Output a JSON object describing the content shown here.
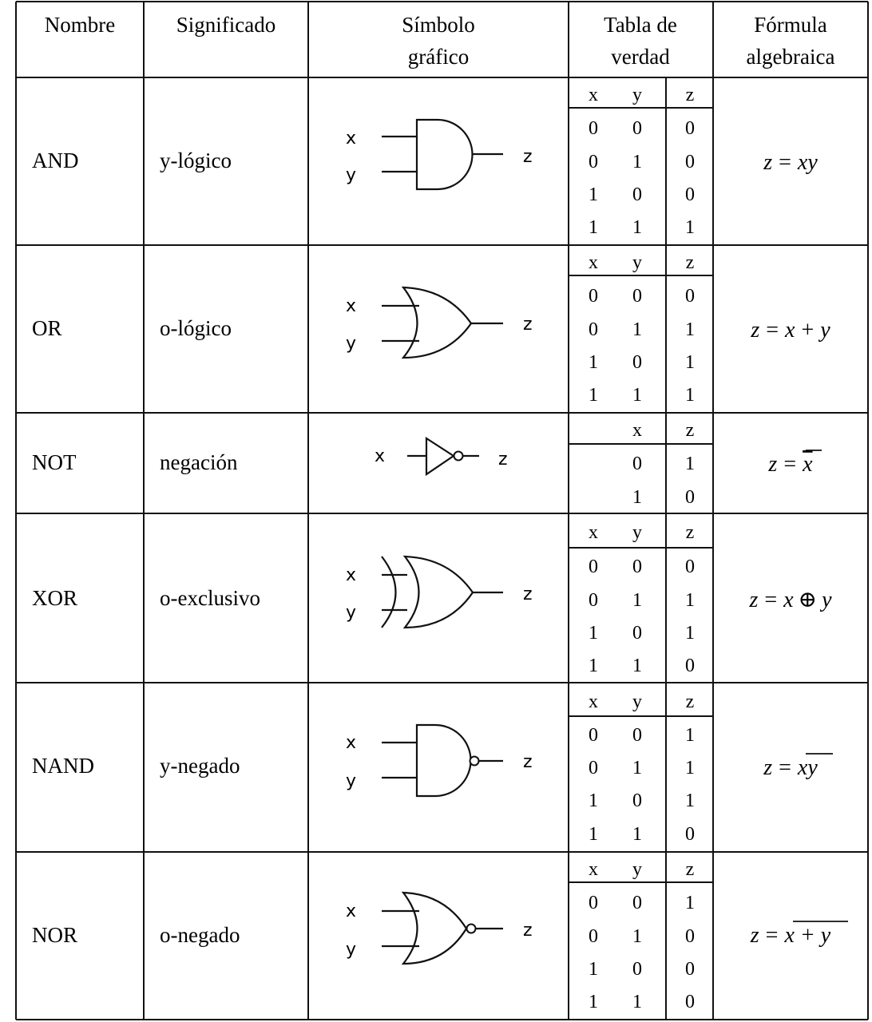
{
  "header": {
    "col_name": "Nombre",
    "col_meaning": "Significado",
    "col_symbol_1": "Símbolo",
    "col_symbol_2": "gráfico",
    "col_truth_1": "Tabla de",
    "col_truth_2": "verdad",
    "col_formula_1": "Fórmula",
    "col_formula_2": "algebraica"
  },
  "gates": [
    {
      "name": "AND",
      "meaning": "y-lógico",
      "symbol": "and-gate",
      "inputs": [
        "x",
        "y"
      ],
      "output": "z",
      "truth_header": [
        "x",
        "y",
        "z"
      ],
      "truth_rows": [
        [
          "0",
          "0",
          "0"
        ],
        [
          "0",
          "1",
          "0"
        ],
        [
          "1",
          "0",
          "0"
        ],
        [
          "1",
          "1",
          "1"
        ]
      ],
      "formula": {
        "lhs": "z",
        "eq": "=",
        "rhs": "xy"
      }
    },
    {
      "name": "OR",
      "meaning": "o-lógico",
      "symbol": "or-gate",
      "inputs": [
        "x",
        "y"
      ],
      "output": "z",
      "truth_header": [
        "x",
        "y",
        "z"
      ],
      "truth_rows": [
        [
          "0",
          "0",
          "0"
        ],
        [
          "0",
          "1",
          "1"
        ],
        [
          "1",
          "0",
          "1"
        ],
        [
          "1",
          "1",
          "1"
        ]
      ],
      "formula": {
        "lhs": "z",
        "eq": "=",
        "rhs_a": "x",
        "op": "+",
        "rhs_b": "y"
      }
    },
    {
      "name": "NOT",
      "meaning": "negación",
      "symbol": "not-gate",
      "inputs": [
        "x"
      ],
      "output": "z",
      "truth_header": [
        "x",
        "z"
      ],
      "truth_rows": [
        [
          "0",
          "1"
        ],
        [
          "1",
          "0"
        ]
      ],
      "formula": {
        "lhs": "z",
        "eq": "=",
        "rhs": "x"
      }
    },
    {
      "name": "XOR",
      "meaning": "o-exclusivo",
      "symbol": "xor-gate",
      "inputs": [
        "x",
        "y"
      ],
      "output": "z",
      "truth_header": [
        "x",
        "y",
        "z"
      ],
      "truth_rows": [
        [
          "0",
          "0",
          "0"
        ],
        [
          "0",
          "1",
          "1"
        ],
        [
          "1",
          "0",
          "1"
        ],
        [
          "1",
          "1",
          "0"
        ]
      ],
      "formula": {
        "lhs": "z",
        "eq": "=",
        "rhs_a": "x",
        "op": "⊕",
        "rhs_b": "y"
      }
    },
    {
      "name": "NAND",
      "meaning": "y-negado",
      "symbol": "nand-gate",
      "inputs": [
        "x",
        "y"
      ],
      "output": "z",
      "truth_header": [
        "x",
        "y",
        "z"
      ],
      "truth_rows": [
        [
          "0",
          "0",
          "1"
        ],
        [
          "0",
          "1",
          "1"
        ],
        [
          "1",
          "0",
          "1"
        ],
        [
          "1",
          "1",
          "0"
        ]
      ],
      "formula": {
        "lhs": "z",
        "eq": "=",
        "rhs": "xy"
      }
    },
    {
      "name": "NOR",
      "meaning": "o-negado",
      "symbol": "nor-gate",
      "inputs": [
        "x",
        "y"
      ],
      "output": "z",
      "truth_header": [
        "x",
        "y",
        "z"
      ],
      "truth_rows": [
        [
          "0",
          "0",
          "1"
        ],
        [
          "0",
          "1",
          "0"
        ],
        [
          "1",
          "0",
          "0"
        ],
        [
          "1",
          "1",
          "0"
        ]
      ],
      "formula": {
        "lhs": "z",
        "eq": "=",
        "rhs": "x + y"
      }
    }
  ]
}
